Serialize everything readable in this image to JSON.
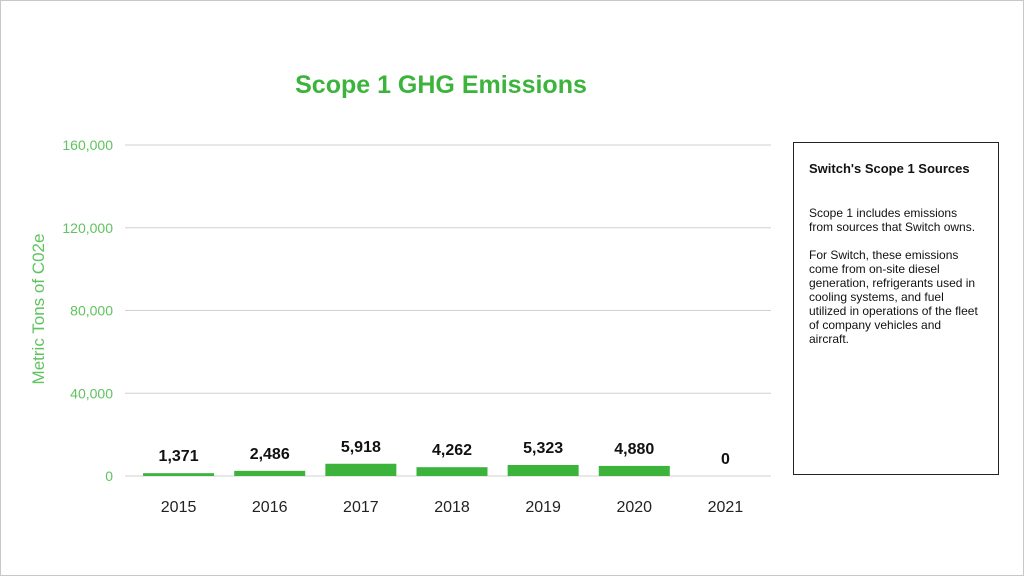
{
  "chart_data": {
    "type": "bar",
    "title": "Scope 1 GHG Emissions",
    "xlabel": "",
    "ylabel": "Metric Tons of C02e",
    "categories": [
      "2015",
      "2016",
      "2017",
      "2018",
      "2019",
      "2020",
      "2021"
    ],
    "values": [
      1371,
      2486,
      5918,
      4262,
      5323,
      4880,
      0
    ],
    "data_labels": [
      "1,371",
      "2,486",
      "5,918",
      "4,262",
      "5,323",
      "4,880",
      "0"
    ],
    "ylim": [
      0,
      160000
    ],
    "yticks": [
      0,
      40000,
      80000,
      120000,
      160000
    ],
    "ytick_labels": [
      "0",
      "40,000",
      "80,000",
      "120,000",
      "160,000"
    ],
    "grid": true,
    "legend": "none",
    "colors": {
      "bar": "#3cb43c",
      "axis_text": "#5fc35f",
      "title": "#3cb43c",
      "grid": "#d0d0d0"
    }
  },
  "sidebox": {
    "title": "Switch's Scope 1 Sources",
    "paragraph1": "Scope 1 includes emissions from sources that Switch owns.",
    "paragraph2": "For Switch, these emissions come from on-site diesel generation, refrigerants used in cooling systems, and fuel utilized in operations of the fleet of company vehicles and aircraft."
  }
}
